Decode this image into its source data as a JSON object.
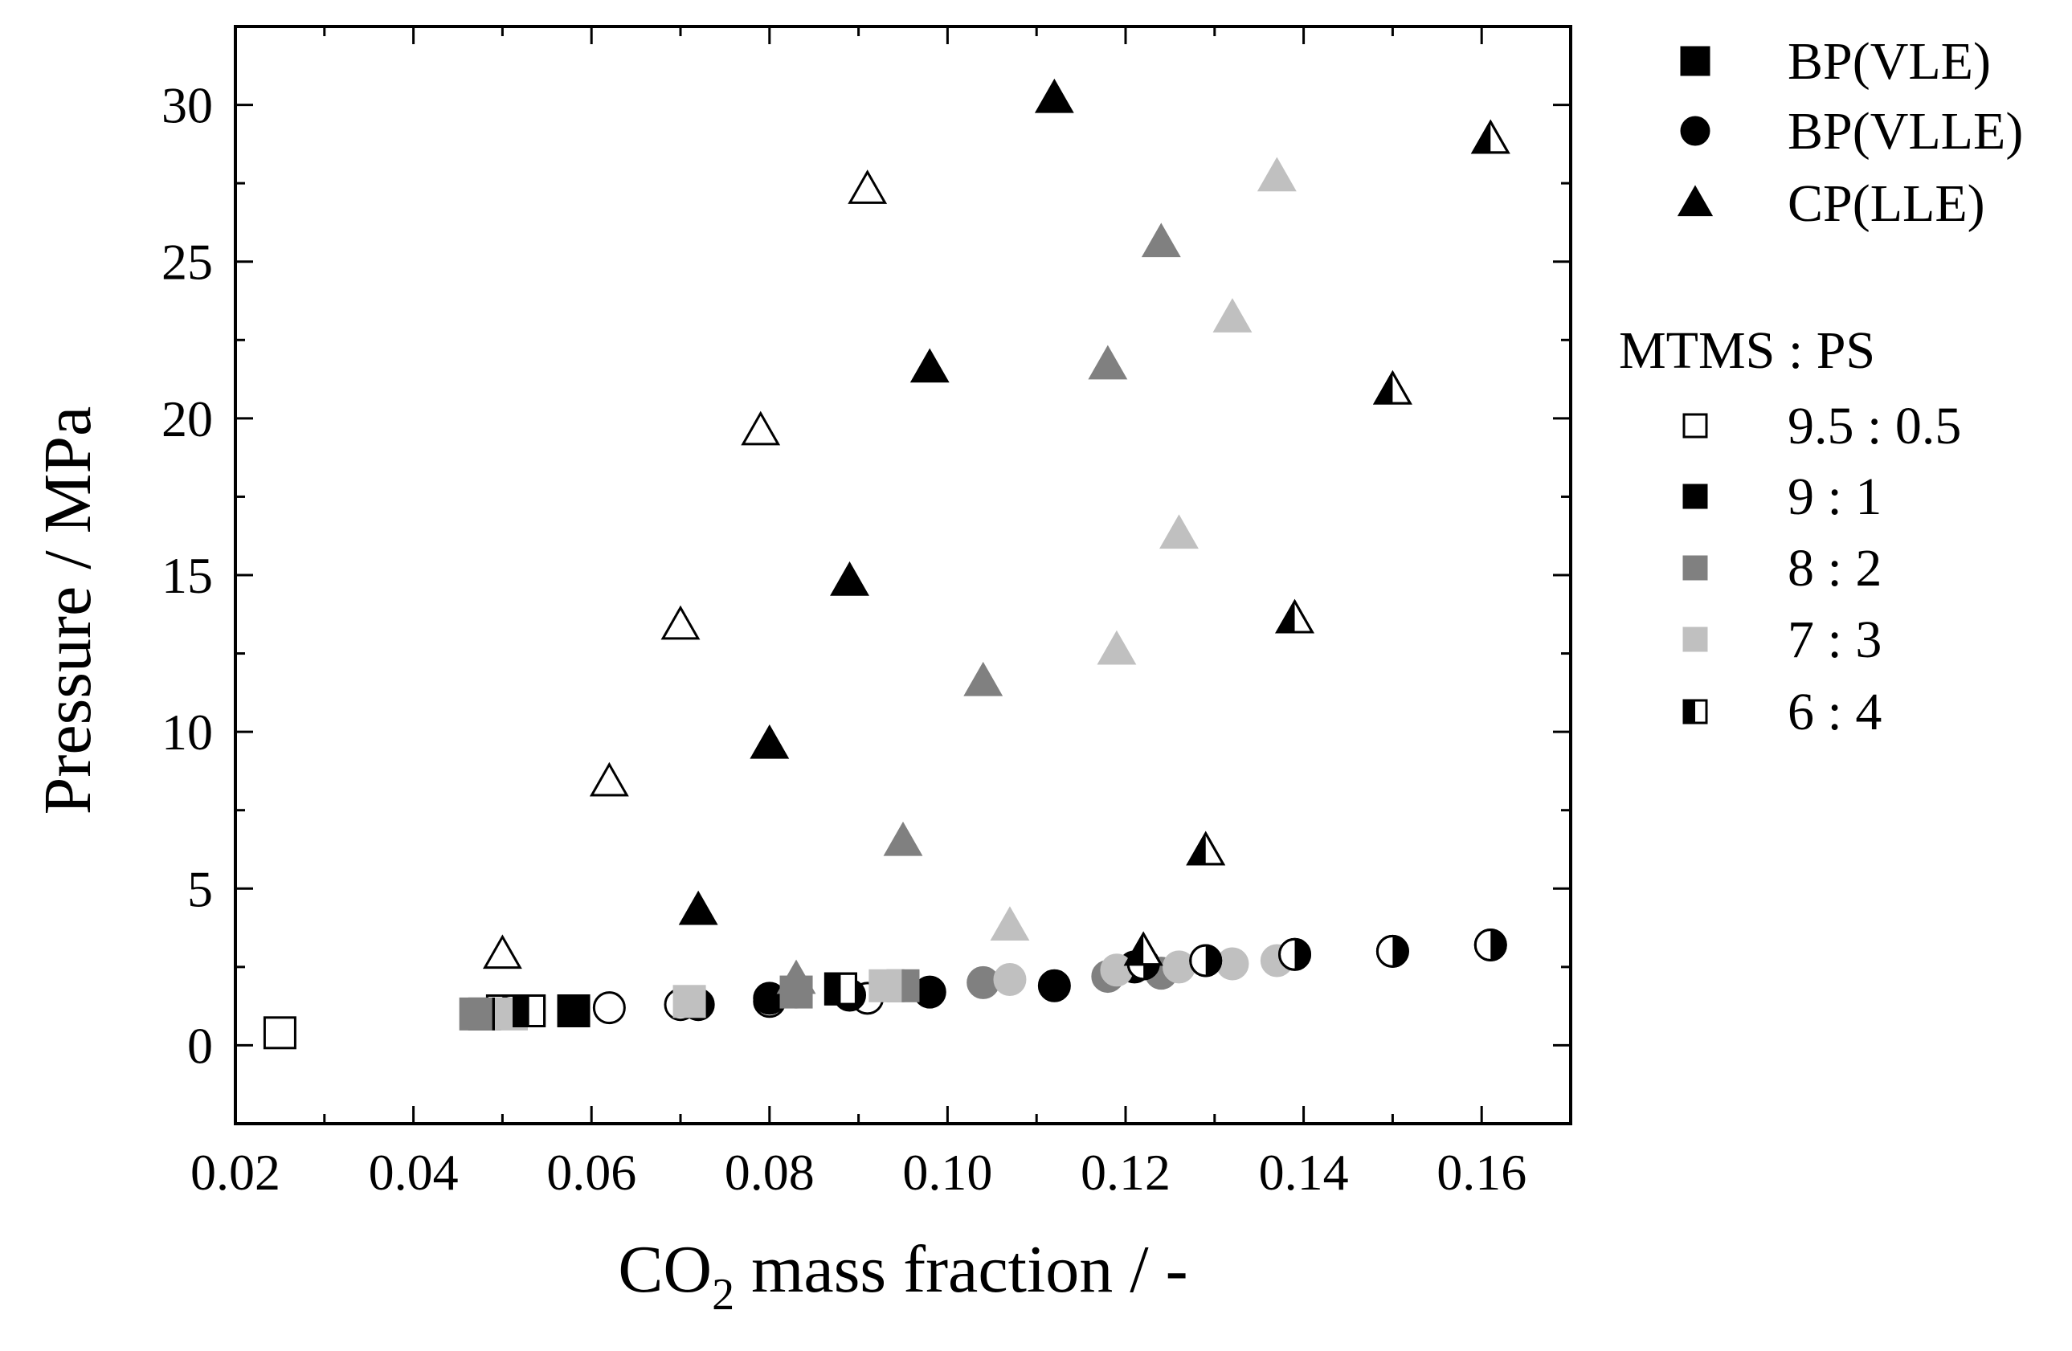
{
  "chart_data": {
    "type": "scatter",
    "xlabel": {
      "main": "CO",
      "sub": "2",
      "rest": " mass fraction / -"
    },
    "ylabel": "Pressure / MPa",
    "xlim": [
      0.02,
      0.17
    ],
    "ylim": [
      -2.5,
      32.5
    ],
    "xticks": [
      0.02,
      0.04,
      0.06,
      0.08,
      0.1,
      0.12,
      0.14,
      0.16
    ],
    "xtick_labels": [
      "0.02",
      "0.04",
      "0.06",
      "0.08",
      "0.10",
      "0.12",
      "0.14",
      "0.16"
    ],
    "yticks": [
      0,
      5,
      10,
      15,
      20,
      25,
      30
    ],
    "ytick_labels": [
      "0",
      "5",
      "10",
      "15",
      "20",
      "25",
      "30"
    ],
    "legend_marker_title": "",
    "legend_markers": [
      {
        "label": "BP(VLE)",
        "marker": "square"
      },
      {
        "label": "BP(VLLE)",
        "marker": "circle"
      },
      {
        "label": "CP(LLE)",
        "marker": "triangle"
      }
    ],
    "legend_ratio_title": "MTMS : PS",
    "legend_ratios": [
      {
        "label": "9.5 : 0.5",
        "fill": "open"
      },
      {
        "label": "9 : 1",
        "fill": "black"
      },
      {
        "label": "8 : 2",
        "fill": "dark"
      },
      {
        "label": "7 : 3",
        "fill": "light"
      },
      {
        "label": "6 : 4",
        "fill": "half"
      }
    ],
    "colors": {
      "open": "#ffffff",
      "black": "#000000",
      "dark": "#808080",
      "light": "#c0c0c0",
      "half": "#000000"
    },
    "series": [
      {
        "name": "BP(VLE) 9.5:0.5",
        "marker": "square",
        "fill": "open",
        "points": [
          [
            0.025,
            0.4
          ],
          [
            0.05,
            1.1
          ]
        ]
      },
      {
        "name": "BP(VLLE) 9.5:0.5",
        "marker": "circle",
        "fill": "open",
        "points": [
          [
            0.051,
            1.1
          ],
          [
            0.062,
            1.2
          ],
          [
            0.07,
            1.3
          ],
          [
            0.08,
            1.4
          ],
          [
            0.091,
            1.5
          ],
          [
            0.122,
            2.6
          ]
        ]
      },
      {
        "name": "CP(LLE) 9.5:0.5",
        "marker": "triangle",
        "fill": "open",
        "points": [
          [
            0.05,
            2.9
          ],
          [
            0.062,
            8.4
          ],
          [
            0.07,
            13.4
          ],
          [
            0.079,
            19.6
          ],
          [
            0.091,
            27.3
          ]
        ]
      },
      {
        "name": "BP(VLE) 9:1",
        "marker": "square",
        "fill": "black",
        "points": [
          [
            0.048,
            1.0
          ],
          [
            0.058,
            1.1
          ],
          [
            0.088,
            1.8
          ]
        ]
      },
      {
        "name": "BP(VLLE) 9:1",
        "marker": "circle",
        "fill": "black",
        "points": [
          [
            0.072,
            1.3
          ],
          [
            0.08,
            1.5
          ],
          [
            0.089,
            1.6
          ],
          [
            0.098,
            1.7
          ],
          [
            0.112,
            1.9
          ],
          [
            0.121,
            2.5
          ]
        ]
      },
      {
        "name": "CP(LLE) 9:1",
        "marker": "triangle",
        "fill": "black",
        "points": [
          [
            0.072,
            4.3
          ],
          [
            0.08,
            9.6
          ],
          [
            0.089,
            14.8
          ],
          [
            0.098,
            21.6
          ],
          [
            0.112,
            30.2
          ]
        ]
      },
      {
        "name": "BP(VLE) 8:2",
        "marker": "square",
        "fill": "dark",
        "points": [
          [
            0.047,
            1.0
          ],
          [
            0.083,
            1.7
          ],
          [
            0.095,
            1.9
          ]
        ]
      },
      {
        "name": "BP(VLLE) 8:2",
        "marker": "circle",
        "fill": "dark",
        "points": [
          [
            0.083,
            1.7
          ],
          [
            0.095,
            1.9
          ],
          [
            0.104,
            2.0
          ],
          [
            0.118,
            2.2
          ],
          [
            0.124,
            2.3
          ]
        ]
      },
      {
        "name": "CP(LLE) 8:2",
        "marker": "triangle",
        "fill": "dark",
        "points": [
          [
            0.083,
            2.1
          ],
          [
            0.095,
            6.5
          ],
          [
            0.104,
            11.6
          ],
          [
            0.118,
            21.7
          ],
          [
            0.124,
            25.6
          ]
        ]
      },
      {
        "name": "BP(VLE) 7:3",
        "marker": "square",
        "fill": "light",
        "points": [
          [
            0.051,
            1.0
          ],
          [
            0.071,
            1.4
          ],
          [
            0.093,
            1.9
          ]
        ]
      },
      {
        "name": "BP(VLLE) 7:3",
        "marker": "circle",
        "fill": "light",
        "points": [
          [
            0.107,
            2.1
          ],
          [
            0.119,
            2.4
          ],
          [
            0.126,
            2.5
          ],
          [
            0.132,
            2.6
          ],
          [
            0.137,
            2.7
          ]
        ]
      },
      {
        "name": "CP(LLE) 7:3",
        "marker": "triangle",
        "fill": "light",
        "points": [
          [
            0.107,
            3.8
          ],
          [
            0.119,
            12.6
          ],
          [
            0.126,
            16.3
          ],
          [
            0.132,
            23.2
          ],
          [
            0.137,
            27.7
          ]
        ]
      },
      {
        "name": "BP(VLE) 6:4",
        "marker": "square",
        "fill": "half",
        "points": [
          [
            0.053,
            1.1
          ],
          [
            0.088,
            1.8
          ]
        ]
      },
      {
        "name": "BP(VLLE) 6:4",
        "marker": "circle",
        "fill": "half",
        "points": [
          [
            0.122,
            2.6
          ],
          [
            0.129,
            2.7
          ],
          [
            0.139,
            2.9
          ],
          [
            0.15,
            3.0
          ],
          [
            0.161,
            3.2
          ]
        ]
      },
      {
        "name": "CP(LLE) 6:4",
        "marker": "triangle",
        "fill": "half",
        "points": [
          [
            0.122,
            3.0
          ],
          [
            0.129,
            6.2
          ],
          [
            0.139,
            13.6
          ],
          [
            0.15,
            20.9
          ],
          [
            0.161,
            28.9
          ]
        ]
      }
    ]
  }
}
